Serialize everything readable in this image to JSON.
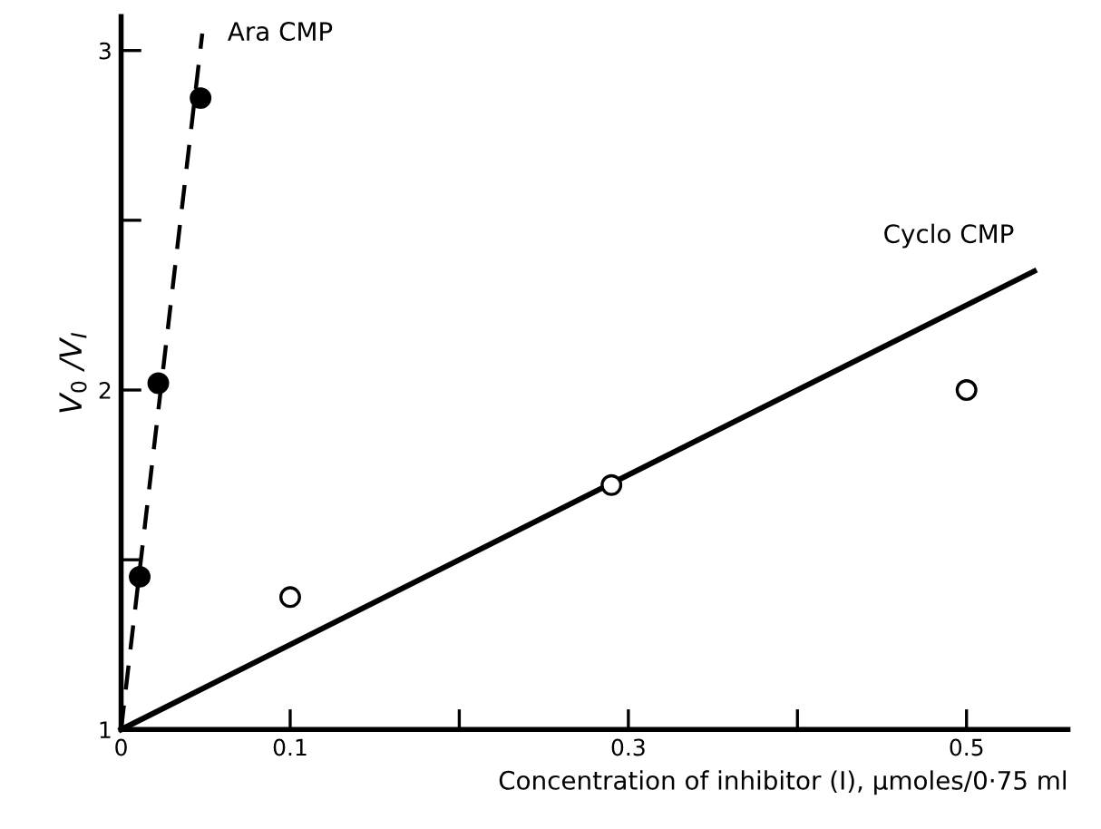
{
  "chart_data": {
    "type": "scatter",
    "xlabel": "Concentration of inhibitor (I), μmoles/0·75 ml",
    "ylabel": "V$_{0}$ /V$_{I}$",
    "xlim": [
      0,
      0.56
    ],
    "ylim": [
      1,
      3.1
    ],
    "xticks": [
      0,
      0.1,
      {
        "value": 0.2,
        "label": null
      },
      0.3,
      {
        "value": 0.4,
        "label": null
      },
      0.5
    ],
    "yticks": [
      1,
      {
        "value": 1.5,
        "label": null
      },
      2,
      {
        "value": 2.5,
        "label": null
      },
      3
    ],
    "grid": false,
    "legend": false,
    "series": [
      {
        "color": "#000000",
        "marker": "circle",
        "x": [
          0.011,
          0.022,
          0.047
        ],
        "values": [
          1.45,
          2.02,
          2.86
        ]
      },
      {
        "type": "line",
        "name": "Ara CMP",
        "color": "#000000",
        "line_style": "dashed",
        "marker": "none",
        "x": [
          0,
          0.048
        ],
        "values": [
          1,
          3.05
        ]
      },
      {
        "color": "#ffffff",
        "marker": "circle",
        "x": [
          0.1,
          0.29,
          0.5
        ],
        "values": [
          1.39,
          1.72,
          2.0
        ]
      },
      {
        "type": "line",
        "name": "Cyclo CMP",
        "color": "#000000",
        "line_style": "solid",
        "marker": "none",
        "x": [
          0,
          0.54
        ],
        "values": [
          1,
          2.35
        ]
      }
    ]
  }
}
